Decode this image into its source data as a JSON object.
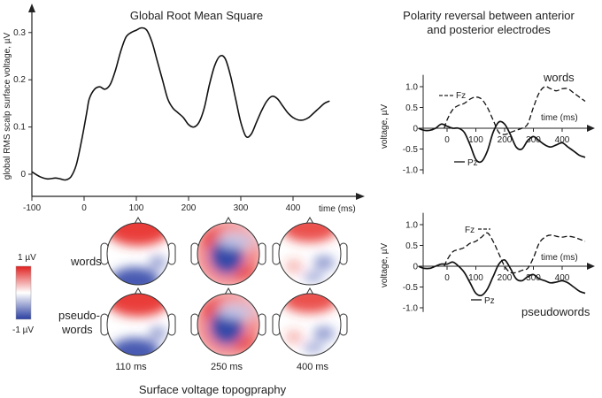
{
  "chart_data": [
    {
      "type": "line",
      "title": "Global Root Mean Square",
      "xlabel": "time (ms)",
      "ylabel": "global  RMS scalp surface voltage, µV",
      "xlim": [
        -100,
        500
      ],
      "ylim": [
        -0.03,
        0.34
      ],
      "x_ticks": [
        -100,
        0,
        100,
        200,
        300,
        400
      ],
      "y_ticks": [
        0,
        0.1,
        0.2,
        0.3
      ],
      "series": [
        {
          "x": [
            -100,
            -85,
            -70,
            -55,
            -45,
            -35,
            -25,
            -15,
            -5,
            5,
            10,
            20,
            30,
            40,
            50,
            60,
            70,
            80,
            90,
            100,
            110,
            120,
            130,
            140,
            150,
            160,
            170,
            180,
            190,
            200,
            210,
            220,
            230,
            240,
            250,
            260,
            270,
            280,
            290,
            300,
            310,
            320,
            330,
            340,
            350,
            360,
            370,
            380,
            390,
            400,
            410,
            420,
            430,
            440,
            450,
            460,
            470
          ],
          "y": [
            0.005,
            -0.005,
            -0.01,
            -0.008,
            -0.01,
            -0.012,
            -0.005,
            0.02,
            0.07,
            0.13,
            0.16,
            0.18,
            0.185,
            0.18,
            0.19,
            0.22,
            0.26,
            0.29,
            0.3,
            0.305,
            0.31,
            0.305,
            0.28,
            0.24,
            0.2,
            0.16,
            0.14,
            0.13,
            0.12,
            0.105,
            0.1,
            0.11,
            0.14,
            0.19,
            0.23,
            0.25,
            0.245,
            0.21,
            0.16,
            0.11,
            0.08,
            0.085,
            0.11,
            0.135,
            0.155,
            0.165,
            0.16,
            0.145,
            0.13,
            0.12,
            0.115,
            0.115,
            0.12,
            0.13,
            0.14,
            0.15,
            0.155
          ]
        }
      ]
    },
    {
      "type": "line",
      "title": "Polarity reversal between anterior",
      "subtitle": "and posterior electrodes",
      "panel_label": "words",
      "xlabel": "time (ms)",
      "ylabel": "voltage, µV",
      "xlim": [
        -100,
        500
      ],
      "ylim": [
        -1.1,
        1.2
      ],
      "x_ticks": [
        0,
        100,
        200,
        300,
        400
      ],
      "y_ticks": [
        1.0,
        0.5,
        0,
        -0.5,
        -1.0
      ],
      "y_tick_labels": [
        "1.0",
        "0.5",
        "0",
        "-0.5",
        "-1.0"
      ],
      "series": [
        {
          "name": "Fz",
          "style": "dashed",
          "x": [
            -10,
            0,
            20,
            40,
            60,
            80,
            100,
            120,
            140,
            160,
            180,
            200,
            220,
            240,
            260,
            280,
            300,
            320,
            340,
            360,
            380,
            400,
            420,
            440,
            460,
            480
          ],
          "y": [
            0.0,
            0.2,
            0.45,
            0.55,
            0.6,
            0.7,
            0.75,
            0.7,
            0.5,
            0.2,
            -0.1,
            -0.15,
            -0.1,
            -0.05,
            0.0,
            0.1,
            0.5,
            0.85,
            1.0,
            0.95,
            0.9,
            0.95,
            0.95,
            0.85,
            0.75,
            0.65
          ]
        },
        {
          "name": "Pz",
          "style": "solid",
          "x": [
            -100,
            -80,
            -60,
            -40,
            -20,
            0,
            20,
            40,
            60,
            80,
            100,
            120,
            140,
            160,
            180,
            200,
            220,
            240,
            260,
            280,
            300,
            320,
            340,
            360,
            380,
            400,
            420,
            440,
            460,
            480
          ],
          "y": [
            0.0,
            -0.05,
            -0.05,
            0.0,
            0.1,
            0.05,
            0.0,
            0.0,
            -0.1,
            -0.4,
            -0.75,
            -0.8,
            -0.55,
            -0.1,
            0.15,
            0.1,
            -0.15,
            -0.45,
            -0.5,
            -0.3,
            -0.2,
            -0.3,
            -0.4,
            -0.45,
            -0.4,
            -0.35,
            -0.45,
            -0.55,
            -0.65,
            -0.7
          ]
        }
      ]
    },
    {
      "type": "line",
      "panel_label": "pseudowords",
      "xlabel": "time (ms)",
      "ylabel": "voltage, µV",
      "xlim": [
        -100,
        500
      ],
      "ylim": [
        -1.1,
        1.2
      ],
      "x_ticks": [
        0,
        100,
        200,
        300,
        400
      ],
      "y_ticks": [
        1.0,
        0.5,
        0,
        -0.5,
        -1.0
      ],
      "y_tick_labels": [
        "1.0",
        "0.5",
        "0",
        "-0.5",
        "-1.0"
      ],
      "series": [
        {
          "name": "Fz",
          "style": "dashed",
          "x": [
            -10,
            0,
            20,
            40,
            60,
            80,
            100,
            120,
            140,
            160,
            180,
            200,
            220,
            240,
            260,
            280,
            300,
            320,
            340,
            360,
            380,
            400,
            420,
            440,
            460,
            480
          ],
          "y": [
            0.0,
            0.15,
            0.35,
            0.4,
            0.45,
            0.55,
            0.6,
            0.7,
            0.8,
            0.6,
            0.3,
            0.0,
            -0.15,
            -0.15,
            -0.1,
            -0.05,
            0.2,
            0.55,
            0.7,
            0.75,
            0.72,
            0.7,
            0.72,
            0.7,
            0.65,
            0.6
          ]
        },
        {
          "name": "Pz",
          "style": "solid",
          "x": [
            -100,
            -80,
            -60,
            -40,
            -20,
            0,
            20,
            40,
            60,
            80,
            100,
            120,
            140,
            160,
            180,
            200,
            220,
            240,
            260,
            280,
            300,
            320,
            340,
            360,
            380,
            400,
            420,
            440,
            460,
            480
          ],
          "y": [
            0.0,
            -0.05,
            -0.05,
            0.0,
            0.05,
            0.05,
            0.1,
            0.0,
            -0.15,
            -0.4,
            -0.65,
            -0.7,
            -0.55,
            -0.25,
            0.05,
            0.15,
            -0.05,
            -0.3,
            -0.35,
            -0.25,
            -0.2,
            -0.3,
            -0.35,
            -0.4,
            -0.38,
            -0.35,
            -0.4,
            -0.5,
            -0.6,
            -0.65
          ]
        }
      ]
    }
  ],
  "topography": {
    "title": "Surface voltage topogpraphy",
    "row_labels": [
      "words",
      "pseudo-",
      "words"
    ],
    "colorbar_max": "1 µV",
    "colorbar_min": "-1 µV",
    "time_labels": [
      "110 ms",
      "250 ms",
      "400 ms"
    ],
    "colors": {
      "positive": "#e8322f",
      "negative": "#3548a8",
      "neutral": "#ffffff"
    },
    "maps": [
      {
        "row": "words",
        "time": "110 ms",
        "pattern": "red-top-blue-bottom"
      },
      {
        "row": "words",
        "time": "250 ms",
        "pattern": "blue-center-red-edges"
      },
      {
        "row": "words",
        "time": "400 ms",
        "pattern": "red-top-weak"
      },
      {
        "row": "pseudowords",
        "time": "110 ms",
        "pattern": "red-top-blue-bottom"
      },
      {
        "row": "pseudowords",
        "time": "250 ms",
        "pattern": "blue-center-red-edges"
      },
      {
        "row": "pseudowords",
        "time": "400 ms",
        "pattern": "red-top-weak"
      }
    ]
  }
}
